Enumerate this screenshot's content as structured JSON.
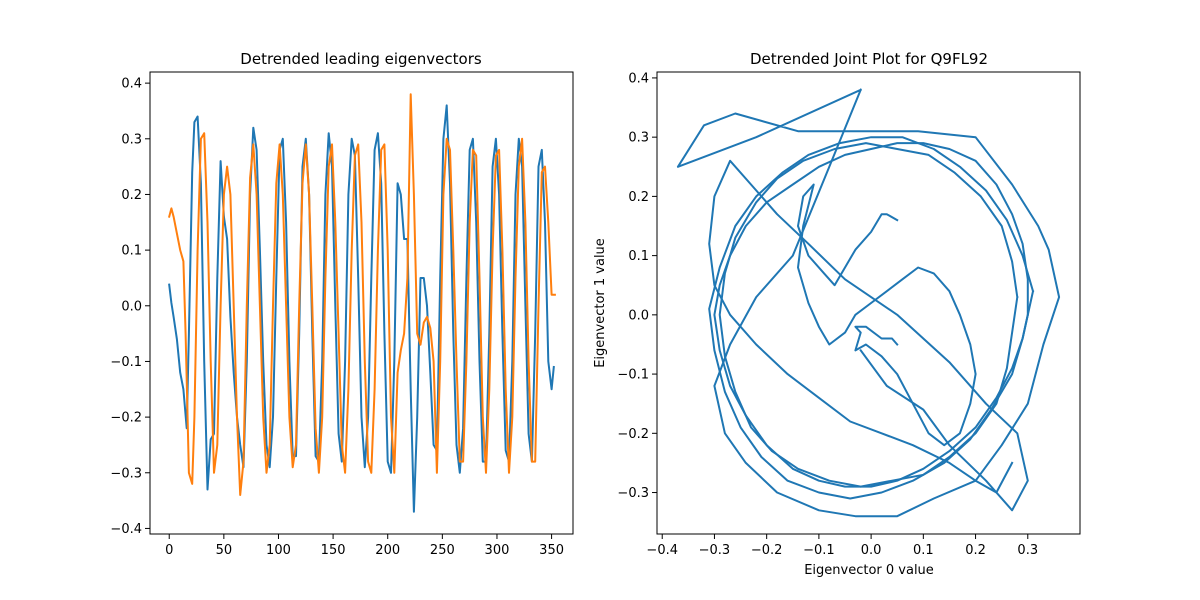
{
  "chart_data": [
    {
      "type": "line",
      "title": "Detrended leading eigenvectors",
      "xlabel": "",
      "ylabel": "",
      "xlim": [
        -17.6,
        369.6
      ],
      "ylim": [
        -0.41,
        0.42
      ],
      "xticks": [
        0,
        50,
        100,
        150,
        200,
        250,
        300,
        350
      ],
      "yticks": [
        -0.4,
        -0.3,
        -0.2,
        -0.1,
        0.0,
        0.1,
        0.2,
        0.3,
        0.4
      ],
      "xtick_labels": [
        "0",
        "50",
        "100",
        "150",
        "200",
        "250",
        "300",
        "350"
      ],
      "ytick_labels": [
        "−0.4",
        "−0.3",
        "−0.2",
        "−0.1",
        "0.0",
        "0.1",
        "0.2",
        "0.3",
        "0.4"
      ],
      "grid": false,
      "series": [
        {
          "color": "#1f77b4",
          "x": [
            0,
            2,
            4,
            7,
            10,
            13,
            16,
            18,
            21,
            23,
            26,
            29,
            32,
            35,
            38,
            41,
            44,
            47,
            50,
            53,
            56,
            59,
            62,
            65,
            68,
            71,
            74,
            77,
            80,
            83,
            86,
            89,
            92,
            95,
            98,
            101,
            104,
            107,
            110,
            113,
            116,
            119,
            122,
            125,
            128,
            131,
            134,
            137,
            140,
            143,
            146,
            149,
            152,
            155,
            158,
            161,
            164,
            167,
            170,
            173,
            176,
            179,
            182,
            185,
            188,
            191,
            194,
            197,
            200,
            203,
            206,
            209,
            212,
            215,
            218,
            221,
            224,
            227,
            230,
            233,
            236,
            239,
            242,
            245,
            248,
            251,
            254,
            257,
            260,
            263,
            266,
            269,
            272,
            275,
            278,
            281,
            284,
            287,
            290,
            293,
            296,
            299,
            302,
            305,
            308,
            311,
            314,
            317,
            320,
            323,
            326,
            329,
            332,
            335,
            338,
            341,
            344,
            347,
            350,
            352
          ],
          "y": [
            0.038,
            0.005,
            -0.02,
            -0.06,
            -0.12,
            -0.15,
            -0.22,
            -0.05,
            0.24,
            0.33,
            0.34,
            0.22,
            -0.1,
            -0.33,
            -0.24,
            -0.23,
            0.05,
            0.26,
            0.16,
            0.12,
            -0.02,
            -0.12,
            -0.2,
            -0.25,
            -0.29,
            -0.1,
            0.2,
            0.32,
            0.28,
            0.1,
            -0.1,
            -0.25,
            -0.29,
            -0.2,
            0.05,
            0.28,
            0.3,
            0.15,
            -0.1,
            -0.27,
            -0.27,
            -0.05,
            0.25,
            0.3,
            0.2,
            -0.05,
            -0.27,
            -0.28,
            -0.1,
            0.2,
            0.31,
            0.25,
            0.0,
            -0.23,
            -0.28,
            -0.1,
            0.2,
            0.3,
            0.27,
            0.05,
            -0.2,
            -0.29,
            -0.2,
            0.05,
            0.28,
            0.31,
            0.22,
            -0.05,
            -0.28,
            -0.3,
            -0.1,
            0.22,
            0.2,
            0.12,
            0.12,
            -0.15,
            -0.37,
            -0.2,
            0.05,
            0.05,
            0.0,
            -0.12,
            -0.25,
            -0.26,
            0.05,
            0.3,
            0.36,
            0.22,
            -0.05,
            -0.25,
            -0.3,
            -0.22,
            0.05,
            0.28,
            0.3,
            0.15,
            -0.1,
            -0.28,
            -0.28,
            -0.05,
            0.25,
            0.3,
            0.2,
            -0.05,
            -0.26,
            -0.28,
            -0.1,
            0.2,
            0.3,
            0.25,
            0.0,
            -0.23,
            -0.28,
            -0.05,
            0.25,
            0.28,
            0.15,
            -0.1,
            -0.15,
            -0.11
          ]
        },
        {
          "color": "#ff7f0e",
          "x": [
            0,
            2,
            4,
            7,
            10,
            13,
            15,
            18,
            21,
            23,
            26,
            29,
            32,
            35,
            38,
            41,
            44,
            47,
            50,
            53,
            56,
            59,
            62,
            65,
            68,
            71,
            74,
            77,
            80,
            83,
            86,
            89,
            92,
            95,
            98,
            101,
            104,
            107,
            110,
            113,
            116,
            119,
            122,
            125,
            128,
            131,
            134,
            137,
            140,
            143,
            146,
            149,
            152,
            155,
            158,
            161,
            164,
            167,
            170,
            173,
            176,
            179,
            182,
            185,
            188,
            191,
            194,
            197,
            200,
            203,
            206,
            209,
            212,
            215,
            218,
            221,
            224,
            227,
            230,
            233,
            236,
            239,
            242,
            245,
            248,
            251,
            254,
            257,
            260,
            263,
            266,
            269,
            272,
            275,
            278,
            281,
            284,
            287,
            290,
            293,
            296,
            299,
            302,
            305,
            308,
            311,
            314,
            317,
            320,
            323,
            326,
            329,
            332,
            335,
            338,
            341,
            344,
            347,
            350,
            353
          ],
          "y": [
            0.16,
            0.175,
            0.16,
            0.13,
            0.1,
            0.08,
            -0.05,
            -0.3,
            -0.32,
            -0.2,
            0.1,
            0.3,
            0.31,
            0.15,
            -0.1,
            -0.3,
            -0.25,
            0.0,
            0.2,
            0.25,
            0.2,
            0.0,
            -0.2,
            -0.34,
            -0.28,
            0.0,
            0.23,
            0.29,
            0.2,
            0.0,
            -0.2,
            -0.3,
            -0.25,
            0.0,
            0.22,
            0.29,
            0.2,
            0.0,
            -0.2,
            -0.29,
            -0.25,
            0.0,
            0.22,
            0.29,
            0.2,
            0.0,
            -0.22,
            -0.3,
            -0.2,
            0.05,
            0.25,
            0.29,
            0.15,
            -0.05,
            -0.25,
            -0.3,
            -0.15,
            0.1,
            0.27,
            0.29,
            0.15,
            -0.1,
            -0.28,
            -0.3,
            -0.15,
            0.1,
            0.28,
            0.29,
            0.1,
            -0.2,
            -0.3,
            -0.12,
            -0.08,
            -0.05,
            0.05,
            0.38,
            0.2,
            -0.05,
            -0.07,
            -0.03,
            -0.02,
            -0.04,
            -0.1,
            -0.3,
            -0.1,
            0.2,
            0.3,
            0.28,
            0.1,
            -0.1,
            -0.28,
            -0.28,
            -0.1,
            0.15,
            0.28,
            0.27,
            0.05,
            -0.2,
            -0.3,
            -0.15,
            0.1,
            0.27,
            0.28,
            0.1,
            -0.15,
            -0.3,
            -0.2,
            0.05,
            0.25,
            0.3,
            0.15,
            -0.1,
            -0.28,
            -0.28,
            0.0,
            0.24,
            0.25,
            0.15,
            0.02,
            0.02
          ]
        }
      ]
    },
    {
      "type": "line",
      "title": "Detrended Joint Plot for Q9FL92",
      "xlabel": "Eigenvector 0 value",
      "ylabel": "Eigenvector 1 value",
      "xlim": [
        -0.41,
        0.4
      ],
      "ylim": [
        -0.37,
        0.41
      ],
      "xticks": [
        -0.4,
        -0.3,
        -0.2,
        -0.1,
        0.0,
        0.1,
        0.2,
        0.3
      ],
      "yticks": [
        -0.3,
        -0.2,
        -0.1,
        0.0,
        0.1,
        0.2,
        0.3,
        0.4
      ],
      "xtick_labels": [
        "−0.4",
        "−0.3",
        "−0.2",
        "−0.1",
        "0.0",
        "0.1",
        "0.2",
        "0.3"
      ],
      "ytick_labels": [
        "−0.3",
        "−0.2",
        "−0.1",
        "0.0",
        "0.1",
        "0.2",
        "0.3",
        "0.4"
      ],
      "grid": false,
      "series": [
        {
          "color": "#1f77b4",
          "x": [
            0.05,
            0.03,
            0.02,
            0.0,
            -0.03,
            -0.05,
            -0.07,
            -0.09,
            -0.12,
            -0.14,
            -0.13,
            -0.11,
            -0.13,
            -0.14,
            -0.12,
            -0.1,
            -0.08,
            -0.05,
            -0.03,
            0.0,
            0.03,
            0.06,
            0.09,
            0.12,
            0.15,
            0.17,
            0.19,
            0.2,
            0.19,
            0.17,
            0.14,
            0.11,
            0.08,
            0.05,
            0.02,
            -0.01,
            -0.03,
            -0.02,
            -0.03,
            -0.01,
            0.02,
            0.04,
            0.05
          ],
          "y": [
            0.16,
            0.17,
            0.17,
            0.14,
            0.11,
            0.08,
            0.05,
            0.07,
            0.1,
            0.15,
            0.2,
            0.22,
            0.15,
            0.08,
            0.02,
            -0.02,
            -0.05,
            -0.03,
            0.0,
            0.02,
            0.04,
            0.06,
            0.08,
            0.07,
            0.04,
            0.0,
            -0.05,
            -0.1,
            -0.15,
            -0.2,
            -0.22,
            -0.2,
            -0.15,
            -0.1,
            -0.07,
            -0.05,
            -0.06,
            -0.03,
            -0.02,
            -0.02,
            -0.04,
            -0.04,
            -0.05
          ]
        },
        {
          "color": "#1f77b4",
          "x": [
            0.3,
            0.3,
            0.29,
            0.27,
            0.24,
            0.2,
            0.15,
            0.1,
            0.05,
            0.0,
            -0.05,
            -0.1,
            -0.15,
            -0.2,
            -0.24,
            -0.27,
            -0.29,
            -0.3,
            -0.29,
            -0.27,
            -0.24,
            -0.2,
            -0.15,
            -0.1,
            -0.05,
            0.0,
            0.05,
            0.1,
            0.15,
            0.2,
            0.24,
            0.27,
            0.29,
            0.3
          ],
          "y": [
            0.0,
            0.06,
            0.12,
            0.17,
            0.22,
            0.26,
            0.28,
            0.29,
            0.29,
            0.28,
            0.27,
            0.25,
            0.22,
            0.19,
            0.15,
            0.1,
            0.05,
            0.0,
            -0.06,
            -0.12,
            -0.17,
            -0.22,
            -0.26,
            -0.28,
            -0.29,
            -0.29,
            -0.28,
            -0.26,
            -0.23,
            -0.19,
            -0.14,
            -0.09,
            -0.04,
            0.0
          ]
        },
        {
          "color": "#1f77b4",
          "x": [
            0.31,
            0.29,
            0.26,
            0.22,
            0.17,
            0.12,
            0.06,
            0.0,
            -0.06,
            -0.12,
            -0.17,
            -0.22,
            -0.26,
            -0.29,
            -0.31,
            -0.3,
            -0.28,
            -0.25,
            -0.21,
            -0.16,
            -0.1,
            -0.04,
            0.02,
            0.08,
            0.14,
            0.19,
            0.23,
            0.27,
            0.29,
            0.31
          ],
          "y": [
            0.04,
            0.1,
            0.16,
            0.21,
            0.25,
            0.28,
            0.3,
            0.3,
            0.29,
            0.27,
            0.24,
            0.2,
            0.15,
            0.08,
            0.01,
            -0.06,
            -0.13,
            -0.19,
            -0.24,
            -0.28,
            -0.3,
            -0.31,
            -0.3,
            -0.28,
            -0.25,
            -0.21,
            -0.16,
            -0.1,
            -0.04,
            0.04
          ]
        },
        {
          "color": "#1f77b4",
          "x": [
            0.28,
            0.27,
            0.25,
            0.21,
            0.16,
            0.11,
            0.05,
            -0.01,
            -0.07,
            -0.13,
            -0.18,
            -0.22,
            -0.26,
            -0.28,
            -0.29,
            -0.28,
            -0.26,
            -0.23,
            -0.19,
            -0.14,
            -0.08,
            -0.02,
            0.04,
            0.1,
            0.15,
            0.2,
            0.24,
            0.26,
            0.28
          ],
          "y": [
            0.03,
            0.09,
            0.15,
            0.2,
            0.24,
            0.27,
            0.28,
            0.29,
            0.28,
            0.26,
            0.23,
            0.19,
            0.13,
            0.07,
            0.0,
            -0.07,
            -0.13,
            -0.19,
            -0.23,
            -0.26,
            -0.28,
            -0.29,
            -0.28,
            -0.27,
            -0.24,
            -0.2,
            -0.15,
            -0.09,
            0.03
          ]
        },
        {
          "color": "#1f77b4",
          "x": [
            -0.02,
            -0.22,
            -0.37,
            -0.32,
            -0.26,
            -0.14,
            -0.02,
            0.09,
            0.2,
            0.27,
            0.32,
            0.34,
            0.36,
            0.33,
            0.3,
            0.25,
            0.2,
            0.12,
            0.05,
            -0.03,
            -0.1,
            -0.18,
            -0.24,
            -0.28,
            -0.3,
            -0.27,
            -0.22,
            -0.15,
            -0.08,
            -0.02
          ],
          "y": [
            0.38,
            0.3,
            0.25,
            0.32,
            0.34,
            0.31,
            0.31,
            0.31,
            0.3,
            0.22,
            0.15,
            0.11,
            0.03,
            -0.05,
            -0.15,
            -0.22,
            -0.28,
            -0.31,
            -0.34,
            -0.34,
            -0.33,
            -0.3,
            -0.25,
            -0.2,
            -0.12,
            -0.05,
            0.03,
            0.1,
            0.25,
            0.38
          ]
        },
        {
          "color": "#1f77b4",
          "x": [
            -0.02,
            0.03,
            0.1,
            0.15,
            0.22,
            0.27,
            0.3,
            0.28,
            0.22,
            0.15,
            0.05,
            -0.05,
            -0.12,
            -0.18,
            -0.23,
            -0.27,
            -0.3,
            -0.31,
            -0.3,
            -0.27,
            -0.22,
            -0.16,
            -0.1,
            -0.04,
            0.02,
            0.08,
            0.15,
            0.2,
            0.24,
            0.27
          ],
          "y": [
            -0.06,
            -0.12,
            -0.16,
            -0.22,
            -0.28,
            -0.33,
            -0.28,
            -0.2,
            -0.15,
            -0.08,
            0.0,
            0.06,
            0.12,
            0.17,
            0.22,
            0.26,
            0.2,
            0.12,
            0.05,
            0.0,
            -0.05,
            -0.1,
            -0.14,
            -0.18,
            -0.2,
            -0.22,
            -0.25,
            -0.28,
            -0.3,
            -0.25
          ]
        }
      ]
    }
  ]
}
